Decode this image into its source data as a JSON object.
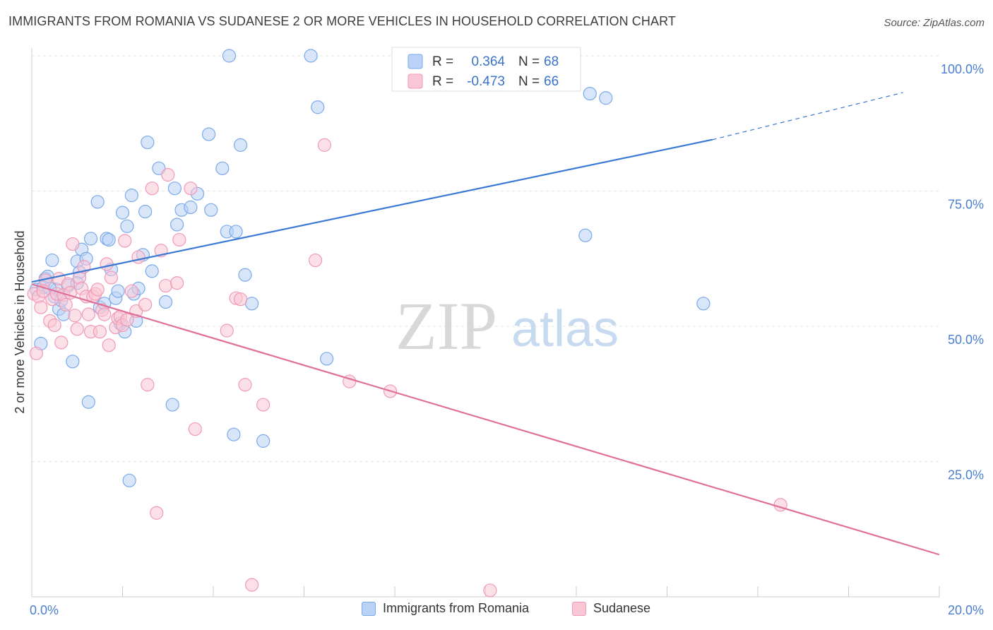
{
  "header": {
    "title": "IMMIGRANTS FROM ROMANIA VS SUDANESE 2 OR MORE VEHICLES IN HOUSEHOLD CORRELATION CHART",
    "source": "Source: ZipAtlas.com"
  },
  "watermark": {
    "zip": "ZIP",
    "atlas": "atlas"
  },
  "chart_data": {
    "type": "scatter",
    "ylabel": "2 or more Vehicles in Household",
    "xlim": [
      0,
      20
    ],
    "ylim": [
      0,
      100
    ],
    "x_tick_labels": [
      "0.0%",
      "20.0%"
    ],
    "y_tick_labels": [
      "100.0%",
      "75.0%",
      "50.0%",
      "25.0%"
    ],
    "y_ticks": [
      100,
      75,
      50,
      25
    ],
    "grid": true,
    "legend_top": {
      "r_label": "R =",
      "n_label": "N =",
      "rows": [
        {
          "r": "0.364",
          "n": "68"
        },
        {
          "r": "-0.473",
          "n": "66"
        }
      ]
    },
    "series": [
      {
        "name": "Immigrants from Romania",
        "color": "#7aaae8",
        "fill": "#b9d2f5",
        "line_color": "#3a7ad3",
        "trend": {
          "x0": 0,
          "y0": 58.2,
          "x1": 15,
          "y1": 84.5,
          "dash_to_x": 19.2,
          "dash_to_y": 93.2
        },
        "points": [
          [
            0.1,
            56.8
          ],
          [
            0.2,
            46.8
          ],
          [
            0.3,
            58.8
          ],
          [
            0.35,
            59.2
          ],
          [
            0.45,
            62.2
          ],
          [
            0.5,
            55.5
          ],
          [
            0.55,
            56.8
          ],
          [
            0.6,
            53.2
          ],
          [
            0.65,
            54.8
          ],
          [
            0.7,
            52.2
          ],
          [
            0.8,
            57.5
          ],
          [
            0.9,
            43.5
          ],
          [
            1.0,
            62.0
          ],
          [
            1.05,
            60.0
          ],
          [
            1.1,
            64.2
          ],
          [
            1.2,
            62.5
          ],
          [
            1.25,
            36.0
          ],
          [
            1.3,
            66.2
          ],
          [
            1.45,
            73.0
          ],
          [
            1.5,
            53.5
          ],
          [
            1.6,
            54.2
          ],
          [
            1.65,
            66.2
          ],
          [
            1.7,
            66.0
          ],
          [
            1.75,
            60.5
          ],
          [
            1.85,
            55.2
          ],
          [
            1.9,
            56.5
          ],
          [
            1.95,
            50.5
          ],
          [
            2.0,
            71.0
          ],
          [
            2.05,
            49.0
          ],
          [
            2.1,
            68.5
          ],
          [
            2.15,
            21.5
          ],
          [
            2.2,
            74.2
          ],
          [
            2.25,
            56.0
          ],
          [
            2.3,
            51.0
          ],
          [
            2.35,
            57.0
          ],
          [
            2.45,
            63.2
          ],
          [
            2.5,
            71.2
          ],
          [
            2.55,
            84.0
          ],
          [
            2.65,
            60.2
          ],
          [
            2.8,
            79.2
          ],
          [
            2.95,
            54.5
          ],
          [
            3.1,
            35.5
          ],
          [
            3.15,
            75.5
          ],
          [
            3.2,
            68.8
          ],
          [
            3.3,
            71.5
          ],
          [
            3.5,
            72.0
          ],
          [
            3.65,
            74.5
          ],
          [
            3.9,
            85.5
          ],
          [
            3.95,
            71.5
          ],
          [
            4.2,
            79.2
          ],
          [
            4.3,
            67.5
          ],
          [
            4.45,
            30.0
          ],
          [
            4.5,
            67.5
          ],
          [
            4.6,
            83.5
          ],
          [
            4.7,
            59.5
          ],
          [
            4.85,
            54.2
          ],
          [
            5.1,
            28.8
          ],
          [
            6.3,
            90.5
          ],
          [
            6.5,
            44.0
          ],
          [
            4.35,
            100.0
          ],
          [
            6.15,
            100.0
          ],
          [
            12.2,
            66.8
          ],
          [
            12.3,
            93.0
          ],
          [
            12.65,
            92.2
          ],
          [
            14.8,
            54.2
          ],
          [
            0.25,
            57.2
          ],
          [
            0.4,
            57.0
          ],
          [
            1.0,
            58.0
          ]
        ]
      },
      {
        "name": "Sudanese",
        "color": "#f09ab6",
        "fill": "#f9c6d6",
        "line_color": "#e0709a",
        "trend": {
          "x0": 0,
          "y0": 57.8,
          "x1": 20,
          "y1": 7.8
        },
        "points": [
          [
            0.05,
            56.0
          ],
          [
            0.1,
            45.0
          ],
          [
            0.15,
            55.5
          ],
          [
            0.2,
            53.5
          ],
          [
            0.3,
            58.5
          ],
          [
            0.4,
            51.0
          ],
          [
            0.45,
            55.0
          ],
          [
            0.5,
            50.2
          ],
          [
            0.55,
            56.0
          ],
          [
            0.6,
            58.8
          ],
          [
            0.65,
            47.0
          ],
          [
            0.7,
            55.8
          ],
          [
            0.8,
            57.8
          ],
          [
            0.85,
            56.2
          ],
          [
            0.9,
            65.2
          ],
          [
            0.95,
            52.0
          ],
          [
            1.0,
            49.5
          ],
          [
            1.05,
            59.0
          ],
          [
            1.1,
            57.0
          ],
          [
            1.15,
            61.0
          ],
          [
            1.2,
            55.5
          ],
          [
            1.25,
            52.2
          ],
          [
            1.3,
            49.0
          ],
          [
            1.35,
            55.5
          ],
          [
            1.4,
            56.0
          ],
          [
            1.5,
            49.0
          ],
          [
            1.55,
            53.0
          ],
          [
            1.6,
            52.2
          ],
          [
            1.65,
            61.5
          ],
          [
            1.7,
            46.5
          ],
          [
            1.75,
            59.0
          ],
          [
            1.85,
            49.8
          ],
          [
            1.9,
            51.5
          ],
          [
            1.95,
            51.8
          ],
          [
            2.0,
            50.2
          ],
          [
            2.05,
            65.8
          ],
          [
            2.1,
            51.2
          ],
          [
            2.2,
            56.5
          ],
          [
            2.3,
            52.8
          ],
          [
            2.35,
            62.8
          ],
          [
            2.5,
            54.0
          ],
          [
            2.55,
            39.2
          ],
          [
            2.65,
            75.5
          ],
          [
            2.75,
            15.5
          ],
          [
            2.85,
            64.0
          ],
          [
            2.95,
            57.5
          ],
          [
            3.0,
            78.0
          ],
          [
            3.2,
            58.0
          ],
          [
            3.25,
            66.0
          ],
          [
            3.5,
            75.5
          ],
          [
            3.6,
            31.0
          ],
          [
            4.3,
            49.2
          ],
          [
            4.5,
            55.2
          ],
          [
            4.6,
            55.0
          ],
          [
            4.7,
            39.2
          ],
          [
            4.85,
            2.2
          ],
          [
            5.1,
            35.5
          ],
          [
            6.25,
            62.2
          ],
          [
            6.45,
            83.5
          ],
          [
            7.0,
            39.8
          ],
          [
            7.9,
            38.0
          ],
          [
            10.1,
            1.2
          ],
          [
            16.5,
            17.0
          ],
          [
            0.25,
            56.5
          ],
          [
            1.45,
            56.8
          ],
          [
            0.75,
            54.0
          ]
        ]
      }
    ]
  }
}
